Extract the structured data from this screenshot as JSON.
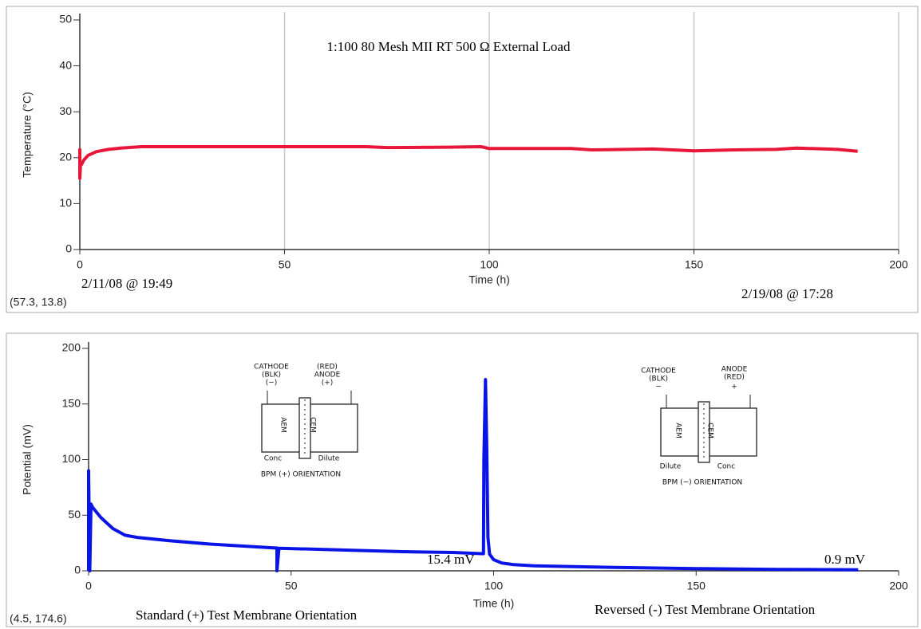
{
  "chart_data": [
    {
      "type": "line",
      "title": "1:100 80 Mesh MII RT 500 Ω External Load",
      "x_label": "Time (h)",
      "y_label": "Temperature (°C)",
      "x": [
        0,
        0,
        0.2,
        0.4,
        1,
        2,
        4,
        7,
        10,
        15,
        30,
        50,
        70,
        75,
        90,
        98,
        100,
        120,
        125,
        140,
        150,
        160,
        170,
        175,
        185,
        190
      ],
      "series": [
        {
          "name": "Temperature",
          "color": "#e8173a",
          "values": [
            22,
            15.5,
            19,
            18.5,
            19.5,
            20.5,
            21.3,
            21.8,
            22.1,
            22.4,
            22.4,
            22.4,
            22.4,
            22.2,
            22.3,
            22.4,
            22,
            22,
            21.7,
            21.9,
            21.5,
            21.7,
            21.8,
            22.1,
            21.8,
            21.4
          ]
        }
      ],
      "xlim": [
        0,
        200
      ],
      "xticks": [
        0,
        50,
        100,
        150,
        200
      ],
      "ylim": [
        0,
        50
      ],
      "yticks": [
        0,
        10,
        20,
        30,
        40,
        50
      ],
      "grid": "x",
      "annotations": [
        "2/11/08 @ 19:49",
        "2/19/08 @ 17:28"
      ],
      "cursor_readout": "(57.3, 13.8)"
    },
    {
      "type": "line",
      "x_label": "Time (h)",
      "y_label": "Potential (mV)",
      "x": [
        0,
        0,
        0.3,
        0.6,
        1,
        3,
        6,
        9,
        12,
        20,
        30,
        46,
        46.5,
        46.5,
        47,
        60,
        80,
        90,
        97,
        97.5,
        97.6,
        98,
        98.3,
        98.6,
        99,
        100,
        102,
        105,
        110,
        130,
        150,
        170,
        190
      ],
      "series": [
        {
          "name": "Potential",
          "color": "#0a14e6",
          "values": [
            0,
            90,
            0,
            60,
            57,
            48,
            38,
            32,
            30,
            27,
            24,
            20.5,
            20.5,
            0,
            20.3,
            19,
            17,
            16.5,
            15.4,
            15.4,
            100,
            172,
            110,
            30,
            15,
            10,
            7,
            5.5,
            4.5,
            3,
            2,
            1.3,
            0.9
          ]
        }
      ],
      "xlim": [
        0,
        200
      ],
      "xticks": [
        0,
        50,
        100,
        150,
        200
      ],
      "ylim": [
        0,
        200
      ],
      "yticks": [
        0,
        50,
        100,
        150,
        200
      ],
      "grid": false,
      "annotations": [
        "15.4 mV",
        "0.9 mV",
        "Standard (+) Test Membrane Orientation",
        "Reversed (-) Test Membrane Orientation"
      ],
      "cursor_readout": "(4.5, 174.6)",
      "insets": [
        {
          "labels": [
            "CATHODE",
            "(BLK)",
            "(−)",
            "(RED)",
            "ANODE",
            "(+)",
            "AEM",
            "CEM",
            "Conc",
            "Dilute",
            "BPM (+) ORIENTATION"
          ]
        },
        {
          "labels": [
            "CATHODE",
            "(BLK)",
            "−",
            "ANODE",
            "(RED)",
            "+",
            "AEM",
            "CEM",
            "Dilute",
            "Conc",
            "BPM (−) ORIENTATION"
          ]
        }
      ]
    }
  ]
}
